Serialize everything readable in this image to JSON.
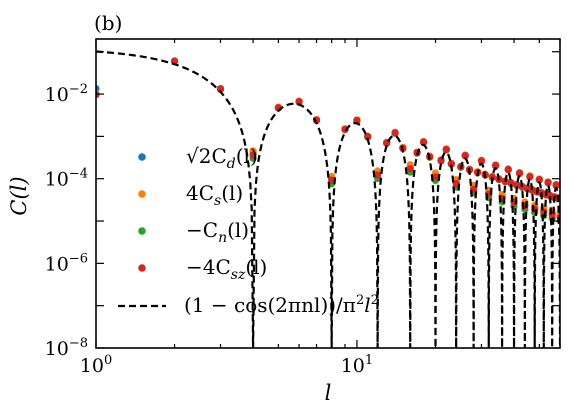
{
  "chart_data": {
    "type": "scatter",
    "panel_label": "(b)",
    "xlabel": "l",
    "ylabel": "C(l)",
    "xscale": "log",
    "yscale": "log",
    "xlim": [
      1,
      60
    ],
    "ylim": [
      1e-08,
      0.2
    ],
    "grid": false,
    "legend_position": "bottom-left",
    "x_ticks": [
      {
        "value": 1,
        "base": "10",
        "exp": "0"
      },
      {
        "value": 10,
        "base": "10",
        "exp": "1"
      }
    ],
    "y_ticks": [
      {
        "value": 1e-08,
        "base": "10",
        "exp": "−8"
      },
      {
        "value": 1e-06,
        "base": "10",
        "exp": "−6"
      },
      {
        "value": 0.0001,
        "base": "10",
        "exp": "−4"
      },
      {
        "value": 0.01,
        "base": "10",
        "exp": "−2"
      }
    ],
    "n": 4,
    "series": [
      {
        "name": "√2C_d(l)",
        "legend_main": "√2C",
        "legend_sub": "d",
        "legend_tail": "(l)",
        "color": "#1f77b4",
        "kind": "points",
        "offset_factor": 1.6,
        "l_first_value": 0.0135
      },
      {
        "name": "4C_s(l)",
        "legend_main": "4C",
        "legend_sub": "s",
        "legend_tail": "(l)",
        "color": "#ff7f0e",
        "kind": "points",
        "offset_factor": 1.8,
        "l_first_value": 0.0102
      },
      {
        "name": "−C_n(l)",
        "legend_main": "−C",
        "legend_sub": "n",
        "legend_tail": "(l)",
        "color": "#2ca02c",
        "kind": "points",
        "offset_factor": 1.2,
        "l_first_value": 0.0098
      },
      {
        "name": "−4C_sz(l)",
        "legend_main": "−4C",
        "legend_sub": "sz",
        "legend_tail": "(l)",
        "color": "#d62728",
        "kind": "points",
        "offset_factor": 1.45,
        "l_first_value": 0.0096
      },
      {
        "name": "(1 − cos(2πnl))/π²l²",
        "legend_main": "(1 − cos(2πnl))/π",
        "legend_sup": "2",
        "legend_mid": "l",
        "legend_sup2": "2",
        "color": "#000000",
        "kind": "dashed-line"
      }
    ]
  }
}
